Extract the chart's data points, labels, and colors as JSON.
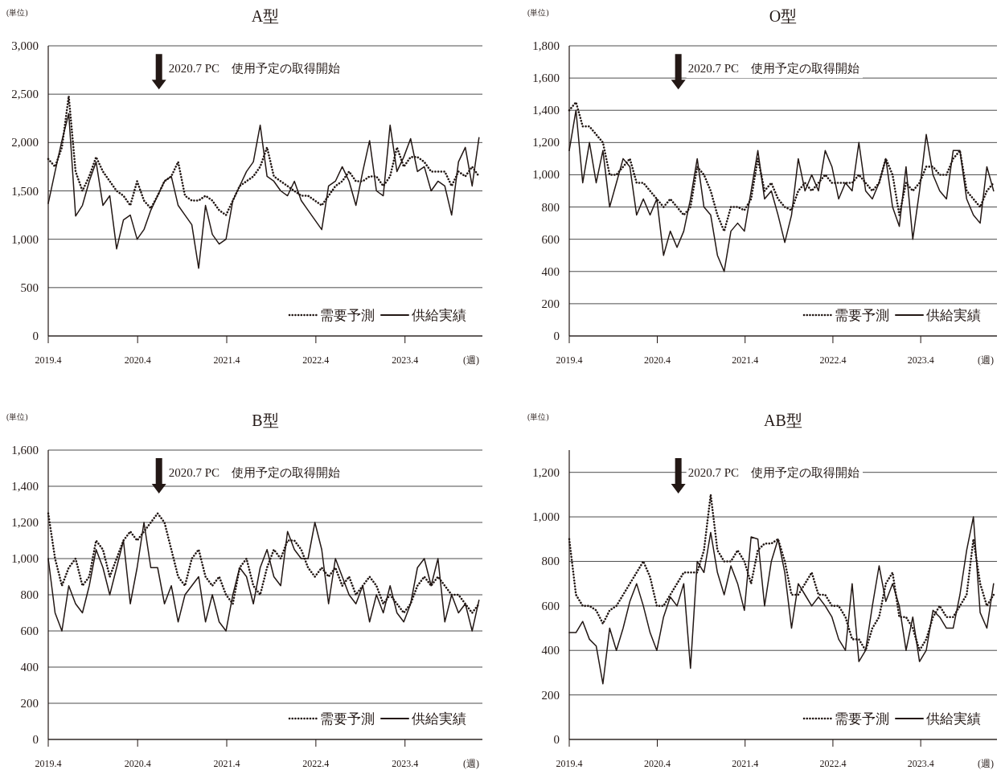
{
  "chart_data": [
    {
      "type": "line",
      "title": "A型",
      "ylabel": "(単位)",
      "xlabel": "(週)",
      "grid": "y",
      "legend": "bottom right",
      "xlim": [
        "2019-04-01",
        "2024-02-12"
      ],
      "xticks": [
        {
          "value": "2019-04-01",
          "label": "2019.4"
        },
        {
          "value": "2020-04-01",
          "label": "2020.4"
        },
        {
          "value": "2021-04-01",
          "label": "2021.4"
        },
        {
          "value": "2022-04-01",
          "label": "2022.4"
        },
        {
          "value": "2023-04-01",
          "label": "2023.4"
        }
      ],
      "ylim": [
        0,
        3000
      ],
      "yticks": [
        0,
        500,
        {
          "value": 1000,
          "label": "1,000"
        },
        {
          "value": 1500,
          "label": "1,500"
        },
        {
          "value": 2000,
          "label": "2,000"
        },
        {
          "value": 2500,
          "label": "2,500"
        },
        {
          "value": 3000,
          "label": "3,000"
        }
      ],
      "annotations": [
        "2020.7 PC　使用予定の取得開始"
      ],
      "x": [
        "2019-04-01",
        "2019-04-29",
        "2019-05-27",
        "2019-06-24",
        "2019-07-22",
        "2019-08-19",
        "2019-09-16",
        "2019-10-14",
        "2019-11-11",
        "2019-12-09",
        "2020-01-06",
        "2020-02-03",
        "2020-03-02",
        "2020-03-30",
        "2020-04-27",
        "2020-05-25",
        "2020-06-22",
        "2020-07-20",
        "2020-08-17",
        "2020-09-14",
        "2020-10-12",
        "2020-11-09",
        "2020-12-07",
        "2021-01-04",
        "2021-02-01",
        "2021-03-01",
        "2021-03-29",
        "2021-04-26",
        "2021-05-24",
        "2021-06-21",
        "2021-07-19",
        "2021-08-16",
        "2021-09-13",
        "2021-10-11",
        "2021-11-08",
        "2021-12-06",
        "2022-01-03",
        "2022-01-31",
        "2022-02-28",
        "2022-03-28",
        "2022-04-25",
        "2022-05-23",
        "2022-06-20",
        "2022-07-18",
        "2022-08-15",
        "2022-09-12",
        "2022-10-10",
        "2022-11-07",
        "2022-12-05",
        "2023-01-02",
        "2023-01-30",
        "2023-02-27",
        "2023-03-27",
        "2023-04-24",
        "2023-05-22",
        "2023-06-19",
        "2023-07-17",
        "2023-08-14",
        "2023-09-11",
        "2023-10-09",
        "2023-11-06",
        "2023-12-04",
        "2024-01-01",
        "2024-01-29"
      ],
      "series": [
        {
          "name": "需要予測",
          "color": "#231815",
          "line_style": "dotted",
          "values": [
            1830,
            1750,
            1950,
            2480,
            1700,
            1500,
            1650,
            1850,
            1700,
            1600,
            1500,
            1450,
            1350,
            1600,
            1400,
            1320,
            1450,
            1600,
            1650,
            1800,
            1450,
            1400,
            1400,
            1450,
            1400,
            1300,
            1250,
            1400,
            1550,
            1600,
            1650,
            1750,
            1950,
            1650,
            1600,
            1550,
            1500,
            1450,
            1450,
            1400,
            1350,
            1450,
            1550,
            1600,
            1700,
            1600,
            1600,
            1650,
            1650,
            1550,
            1650,
            1950,
            1750,
            1850,
            1850,
            1800,
            1700,
            1700,
            1700,
            1550,
            1700,
            1650,
            1750,
            1650
          ]
        },
        {
          "name": "供給実績",
          "color": "#231815",
          "line_style": "solid",
          "values": [
            1370,
            1700,
            2020,
            2300,
            1240,
            1350,
            1600,
            1800,
            1350,
            1450,
            900,
            1200,
            1250,
            1000,
            1100,
            1300,
            1450,
            1600,
            1650,
            1350,
            1250,
            1150,
            700,
            1350,
            1050,
            950,
            1000,
            1400,
            1550,
            1700,
            1800,
            2180,
            1650,
            1600,
            1500,
            1450,
            1600,
            1400,
            1300,
            1200,
            1100,
            1550,
            1600,
            1750,
            1600,
            1350,
            1700,
            2020,
            1500,
            1450,
            2180,
            1700,
            1850,
            2040,
            1700,
            1750,
            1500,
            1600,
            1550,
            1250,
            1800,
            1950,
            1550,
            2050
          ]
        }
      ]
    },
    {
      "type": "line",
      "title": "O型",
      "ylabel": "(単位)",
      "xlabel": "(週)",
      "grid": "y",
      "legend": "bottom right",
      "xlim": [
        "2019-04-01",
        "2024-02-12"
      ],
      "xticks": [
        {
          "value": "2019-04-01",
          "label": "2019.4"
        },
        {
          "value": "2020-04-01",
          "label": "2020.4"
        },
        {
          "value": "2021-04-01",
          "label": "2021.4"
        },
        {
          "value": "2022-04-01",
          "label": "2022.4"
        },
        {
          "value": "2023-04-01",
          "label": "2023.4"
        }
      ],
      "ylim": [
        0,
        1800
      ],
      "yticks": [
        0,
        200,
        400,
        600,
        800,
        {
          "value": 1000,
          "label": "1,000"
        },
        {
          "value": 1200,
          "label": "1,200"
        },
        {
          "value": 1400,
          "label": "1,400"
        },
        {
          "value": 1600,
          "label": "1,600"
        },
        {
          "value": 1800,
          "label": "1,800"
        }
      ],
      "annotations": [
        "2020.7 PC　使用予定の取得開始"
      ],
      "x": [
        "2019-04-01",
        "2019-04-29",
        "2019-05-27",
        "2019-06-24",
        "2019-07-22",
        "2019-08-19",
        "2019-09-16",
        "2019-10-14",
        "2019-11-11",
        "2019-12-09",
        "2020-01-06",
        "2020-02-03",
        "2020-03-02",
        "2020-03-30",
        "2020-04-27",
        "2020-05-25",
        "2020-06-22",
        "2020-07-20",
        "2020-08-17",
        "2020-09-14",
        "2020-10-12",
        "2020-11-09",
        "2020-12-07",
        "2021-01-04",
        "2021-02-01",
        "2021-03-01",
        "2021-03-29",
        "2021-04-26",
        "2021-05-24",
        "2021-06-21",
        "2021-07-19",
        "2021-08-16",
        "2021-09-13",
        "2021-10-11",
        "2021-11-08",
        "2021-12-06",
        "2022-01-03",
        "2022-01-31",
        "2022-02-28",
        "2022-03-28",
        "2022-04-25",
        "2022-05-23",
        "2022-06-20",
        "2022-07-18",
        "2022-08-15",
        "2022-09-12",
        "2022-10-10",
        "2022-11-07",
        "2022-12-05",
        "2023-01-02",
        "2023-01-30",
        "2023-02-27",
        "2023-03-27",
        "2023-04-24",
        "2023-05-22",
        "2023-06-19",
        "2023-07-17",
        "2023-08-14",
        "2023-09-11",
        "2023-10-09",
        "2023-11-06",
        "2023-12-04",
        "2024-01-01",
        "2024-01-29"
      ],
      "series": [
        {
          "name": "需要予測",
          "color": "#231815",
          "line_style": "dotted",
          "values": [
            1400,
            1450,
            1300,
            1300,
            1250,
            1200,
            1000,
            1000,
            1050,
            1100,
            950,
            950,
            900,
            850,
            800,
            850,
            800,
            750,
            800,
            1050,
            1000,
            900,
            750,
            650,
            800,
            800,
            780,
            850,
            1100,
            900,
            950,
            850,
            800,
            780,
            900,
            950,
            900,
            950,
            1000,
            950,
            950,
            950,
            950,
            1000,
            950,
            900,
            950,
            1100,
            1000,
            750,
            950,
            900,
            950,
            1050,
            1050,
            1000,
            1000,
            1100,
            1150,
            900,
            850,
            800,
            900,
            950
          ]
        },
        {
          "name": "供給実績",
          "color": "#231815",
          "line_style": "solid",
          "values": [
            1150,
            1400,
            950,
            1200,
            950,
            1150,
            800,
            950,
            1100,
            1050,
            750,
            850,
            750,
            850,
            500,
            650,
            550,
            650,
            850,
            1100,
            800,
            750,
            500,
            400,
            650,
            700,
            650,
            900,
            1150,
            850,
            900,
            750,
            580,
            750,
            1100,
            900,
            1000,
            900,
            1150,
            1050,
            850,
            950,
            900,
            1200,
            900,
            850,
            950,
            1100,
            800,
            680,
            1050,
            600,
            900,
            1250,
            1000,
            900,
            850,
            1150,
            1150,
            850,
            750,
            700,
            1050,
            900
          ]
        }
      ]
    },
    {
      "type": "line",
      "title": "B型",
      "ylabel": "(単位)",
      "xlabel": "(週)",
      "grid": "y",
      "legend": "bottom right",
      "xlim": [
        "2019-04-01",
        "2024-02-12"
      ],
      "xticks": [
        {
          "value": "2019-04-01",
          "label": "2019.4"
        },
        {
          "value": "2020-04-01",
          "label": "2020.4"
        },
        {
          "value": "2021-04-01",
          "label": "2021.4"
        },
        {
          "value": "2022-04-01",
          "label": "2022.4"
        },
        {
          "value": "2023-04-01",
          "label": "2023.4"
        }
      ],
      "ylim": [
        0,
        1600
      ],
      "yticks": [
        0,
        200,
        400,
        600,
        800,
        {
          "value": 1000,
          "label": "1,000"
        },
        {
          "value": 1200,
          "label": "1,200"
        },
        {
          "value": 1400,
          "label": "1,400"
        },
        {
          "value": 1600,
          "label": "1,600"
        }
      ],
      "annotations": [
        "2020.7 PC　使用予定の取得開始"
      ],
      "x": [
        "2019-04-01",
        "2019-04-29",
        "2019-05-27",
        "2019-06-24",
        "2019-07-22",
        "2019-08-19",
        "2019-09-16",
        "2019-10-14",
        "2019-11-11",
        "2019-12-09",
        "2020-01-06",
        "2020-02-03",
        "2020-03-02",
        "2020-03-30",
        "2020-04-27",
        "2020-05-25",
        "2020-06-22",
        "2020-07-20",
        "2020-08-17",
        "2020-09-14",
        "2020-10-12",
        "2020-11-09",
        "2020-12-07",
        "2021-01-04",
        "2021-02-01",
        "2021-03-01",
        "2021-03-29",
        "2021-04-26",
        "2021-05-24",
        "2021-06-21",
        "2021-07-19",
        "2021-08-16",
        "2021-09-13",
        "2021-10-11",
        "2021-11-08",
        "2021-12-06",
        "2022-01-03",
        "2022-01-31",
        "2022-02-28",
        "2022-03-28",
        "2022-04-25",
        "2022-05-23",
        "2022-06-20",
        "2022-07-18",
        "2022-08-15",
        "2022-09-12",
        "2022-10-10",
        "2022-11-07",
        "2022-12-05",
        "2023-01-02",
        "2023-01-30",
        "2023-02-27",
        "2023-03-27",
        "2023-04-24",
        "2023-05-22",
        "2023-06-19",
        "2023-07-17",
        "2023-08-14",
        "2023-09-11",
        "2023-10-09",
        "2023-11-06",
        "2023-12-04",
        "2024-01-01",
        "2024-01-29"
      ],
      "series": [
        {
          "name": "需要予測",
          "color": "#231815",
          "line_style": "dotted",
          "values": [
            1250,
            1000,
            850,
            950,
            1000,
            850,
            900,
            1100,
            1050,
            900,
            1000,
            1100,
            1150,
            1100,
            1150,
            1200,
            1250,
            1200,
            1050,
            900,
            850,
            1000,
            1050,
            900,
            850,
            900,
            800,
            750,
            950,
            1000,
            850,
            800,
            950,
            1050,
            1000,
            1100,
            1100,
            1050,
            950,
            900,
            950,
            900,
            950,
            850,
            900,
            800,
            850,
            900,
            850,
            750,
            800,
            750,
            700,
            750,
            850,
            900,
            850,
            900,
            850,
            800,
            800,
            750,
            700,
            750
          ]
        },
        {
          "name": "供給実績",
          "color": "#231815",
          "line_style": "solid",
          "values": [
            1000,
            700,
            600,
            850,
            750,
            700,
            850,
            1050,
            950,
            800,
            950,
            1100,
            750,
            950,
            1200,
            950,
            950,
            750,
            850,
            650,
            800,
            850,
            900,
            650,
            800,
            650,
            600,
            800,
            950,
            900,
            750,
            950,
            1050,
            900,
            850,
            1150,
            1050,
            1000,
            1000,
            1200,
            1050,
            750,
            1000,
            900,
            800,
            750,
            850,
            650,
            800,
            700,
            850,
            700,
            650,
            750,
            950,
            1000,
            850,
            1000,
            650,
            800,
            700,
            750,
            600,
            770
          ]
        }
      ]
    },
    {
      "type": "line",
      "title": "AB型",
      "ylabel": "(単位)",
      "xlabel": "(週)",
      "grid": "y",
      "legend": "bottom right",
      "xlim": [
        "2019-04-01",
        "2024-02-12"
      ],
      "xticks": [
        {
          "value": "2019-04-01",
          "label": "2019.4"
        },
        {
          "value": "2020-04-01",
          "label": "2020.4"
        },
        {
          "value": "2021-04-01",
          "label": "2021.4"
        },
        {
          "value": "2022-04-01",
          "label": "2022.4"
        },
        {
          "value": "2023-04-01",
          "label": "2023.4"
        }
      ],
      "ylim": [
        0,
        1300
      ],
      "yticks": [
        0,
        200,
        400,
        600,
        800,
        {
          "value": 1000,
          "label": "1,000"
        },
        {
          "value": 1200,
          "label": "1,200"
        }
      ],
      "annotations": [
        "2020.7 PC　使用予定の取得開始"
      ],
      "x": [
        "2019-04-01",
        "2019-04-29",
        "2019-05-27",
        "2019-06-24",
        "2019-07-22",
        "2019-08-19",
        "2019-09-16",
        "2019-10-14",
        "2019-11-11",
        "2019-12-09",
        "2020-01-06",
        "2020-02-03",
        "2020-03-02",
        "2020-03-30",
        "2020-04-27",
        "2020-05-25",
        "2020-06-22",
        "2020-07-20",
        "2020-08-17",
        "2020-09-14",
        "2020-10-12",
        "2020-11-09",
        "2020-12-07",
        "2021-01-04",
        "2021-02-01",
        "2021-03-01",
        "2021-03-29",
        "2021-04-26",
        "2021-05-24",
        "2021-06-21",
        "2021-07-19",
        "2021-08-16",
        "2021-09-13",
        "2021-10-11",
        "2021-11-08",
        "2021-12-06",
        "2022-01-03",
        "2022-01-31",
        "2022-02-28",
        "2022-03-28",
        "2022-04-25",
        "2022-05-23",
        "2022-06-20",
        "2022-07-18",
        "2022-08-15",
        "2022-09-12",
        "2022-10-10",
        "2022-11-07",
        "2022-12-05",
        "2023-01-02",
        "2023-01-30",
        "2023-02-27",
        "2023-03-27",
        "2023-04-24",
        "2023-05-22",
        "2023-06-19",
        "2023-07-17",
        "2023-08-14",
        "2023-09-11",
        "2023-10-09",
        "2023-11-06",
        "2023-12-04",
        "2024-01-01",
        "2024-01-29"
      ],
      "series": [
        {
          "name": "需要予測",
          "color": "#231815",
          "line_style": "dotted",
          "values": [
            900,
            650,
            600,
            600,
            580,
            520,
            580,
            600,
            650,
            700,
            750,
            800,
            730,
            600,
            600,
            650,
            700,
            750,
            750,
            750,
            850,
            1100,
            850,
            800,
            800,
            850,
            800,
            700,
            850,
            880,
            880,
            900,
            800,
            650,
            650,
            700,
            750,
            650,
            650,
            600,
            600,
            550,
            450,
            450,
            400,
            500,
            550,
            700,
            750,
            550,
            550,
            500,
            400,
            450,
            550,
            600,
            550,
            550,
            600,
            650,
            900,
            700,
            600,
            650
          ]
        },
        {
          "name": "供給実績",
          "color": "#231815",
          "line_style": "solid",
          "values": [
            480,
            480,
            530,
            450,
            420,
            250,
            500,
            400,
            500,
            620,
            700,
            600,
            480,
            400,
            550,
            640,
            600,
            700,
            320,
            800,
            750,
            930,
            750,
            650,
            780,
            700,
            580,
            910,
            900,
            600,
            800,
            900,
            750,
            500,
            700,
            650,
            600,
            640,
            600,
            550,
            450,
            400,
            700,
            350,
            400,
            600,
            780,
            620,
            700,
            600,
            400,
            550,
            350,
            400,
            580,
            550,
            500,
            500,
            650,
            850,
            1000,
            570,
            500,
            700
          ]
        }
      ]
    }
  ]
}
